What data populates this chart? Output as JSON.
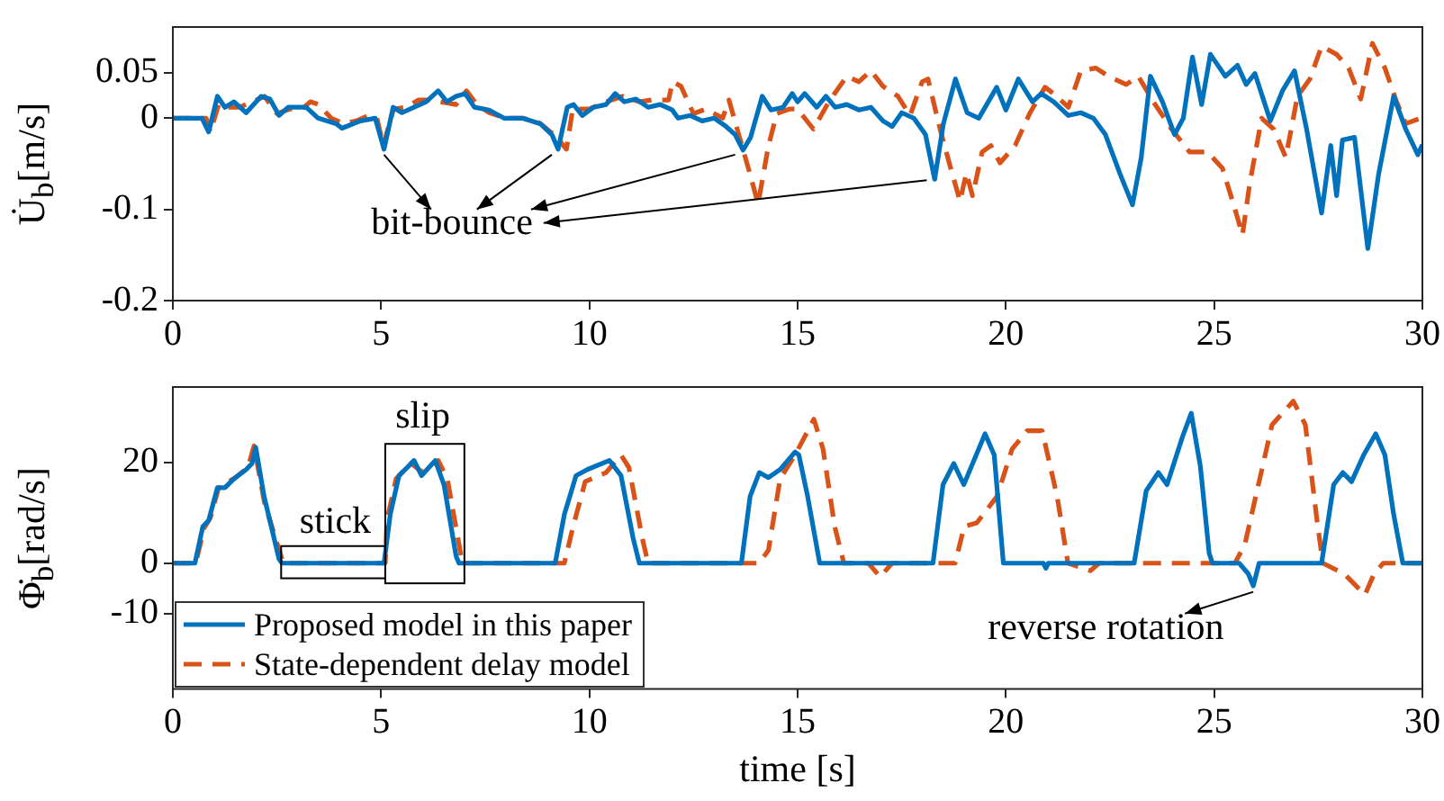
{
  "chart_data": [
    {
      "type": "line",
      "ylabel": "U̇$_{b}$[m/s]",
      "xlim": [
        0,
        30
      ],
      "xticks": [
        0,
        5,
        10,
        15,
        20,
        25,
        30
      ],
      "ylim": [
        -0.2,
        0.1
      ],
      "yticks": [
        -0.2,
        -0.1,
        0,
        0.05
      ],
      "grid": false,
      "legend": false,
      "annotations": [
        {
          "text": "bit-bounce",
          "x": 5.07,
          "y": -0.034
        }
      ],
      "series": [
        {
          "color": "#0072bd",
          "line_style": "solid",
          "x": [
            0,
            0.7,
            0.86,
            1.07,
            1.25,
            1.47,
            1.76,
            2.12,
            2.33,
            2.55,
            2.77,
            3.2,
            3.49,
            3.92,
            4.06,
            4.5,
            4.86,
            5.07,
            5.29,
            5.5,
            5.79,
            6.08,
            6.37,
            6.58,
            6.8,
            7.02,
            7.24,
            7.59,
            7.95,
            8.39,
            8.82,
            9.1,
            9.25,
            9.47,
            9.62,
            9.83,
            10.1,
            10.4,
            10.62,
            10.84,
            11.12,
            11.41,
            11.7,
            11.99,
            12.13,
            12.42,
            12.71,
            13.0,
            13.28,
            13.5,
            13.69,
            13.87,
            14.15,
            14.36,
            14.65,
            14.87,
            15.0,
            15.17,
            15.46,
            15.68,
            15.9,
            16.18,
            16.47,
            16.76,
            17.05,
            17.27,
            17.5,
            17.79,
            18.07,
            18.29,
            18.5,
            18.79,
            19.07,
            19.35,
            19.78,
            20.0,
            20.3,
            20.64,
            20.85,
            21.15,
            21.5,
            21.8,
            22.1,
            22.39,
            22.74,
            23.04,
            23.25,
            23.47,
            23.76,
            24.05,
            24.26,
            24.48,
            24.7,
            24.91,
            25.27,
            25.56,
            25.77,
            25.98,
            26.35,
            26.64,
            26.93,
            27.22,
            27.58,
            27.8,
            27.94,
            28.08,
            28.37,
            28.69,
            28.95,
            29.31,
            29.6,
            29.89,
            30
          ],
          "values": [
            0,
            0,
            -0.015,
            0.024,
            0.012,
            0.018,
            0.006,
            0.024,
            0.021,
            0.003,
            0.012,
            0.012,
            0,
            -0.006,
            -0.011,
            -0.003,
            0,
            -0.034,
            0.012,
            0.006,
            0.012,
            0.018,
            0.03,
            0.018,
            0.024,
            0.027,
            0.012,
            0.009,
            0,
            0,
            -0.006,
            -0.018,
            -0.034,
            0.012,
            0.015,
            0.003,
            0.012,
            0.015,
            0.027,
            0.018,
            0.021,
            0.012,
            0.015,
            0.009,
            0,
            0.003,
            -0.003,
            0,
            -0.009,
            -0.018,
            -0.035,
            -0.021,
            0.024,
            0.009,
            0.012,
            0.027,
            0.018,
            0.027,
            0.012,
            0.024,
            0.012,
            0.015,
            0.009,
            0.012,
            -0.003,
            -0.009,
            0.006,
            0,
            -0.018,
            -0.067,
            -0.006,
            0.043,
            0.006,
            0,
            0.034,
            0.009,
            0.043,
            0.018,
            0.027,
            0.018,
            0.003,
            0.006,
            0,
            -0.018,
            -0.061,
            -0.095,
            -0.043,
            0.046,
            0.018,
            -0.018,
            0,
            0.067,
            0.015,
            0.07,
            0.046,
            0.058,
            0.037,
            0.049,
            -0.003,
            0.03,
            0.052,
            -0.012,
            -0.104,
            -0.03,
            -0.085,
            -0.024,
            -0.021,
            -0.143,
            -0.061,
            0.024,
            -0.012,
            -0.04,
            -0.029
          ]
        },
        {
          "color": "#d95319",
          "line_style": "dashed",
          "x": [
            0,
            0.8,
            0.9,
            1.1,
            1.3,
            1.6,
            1.9,
            2.2,
            2.5,
            2.8,
            3.1,
            3.3,
            3.5,
            3.8,
            4.1,
            4.4,
            4.7,
            4.9,
            5.05,
            5.3,
            5.6,
            5.9,
            6.2,
            6.4,
            6.8,
            7.05,
            7.3,
            7.6,
            8.0,
            8.4,
            8.8,
            9.2,
            9.45,
            9.6,
            10.0,
            10.4,
            10.8,
            11.2,
            11.5,
            11.9,
            12.0,
            12.2,
            12.5,
            12.8,
            13.2,
            13.35,
            13.6,
            13.85,
            14.05,
            14.3,
            14.5,
            14.8,
            15.0,
            15.38,
            15.75,
            16.18,
            16.47,
            16.76,
            17.05,
            17.41,
            17.7,
            17.99,
            18.13,
            18.42,
            18.64,
            18.9,
            19.05,
            19.2,
            19.43,
            19.64,
            19.86,
            20.22,
            20.58,
            20.94,
            21.2,
            21.5,
            21.8,
            22.16,
            22.5,
            22.89,
            23.18,
            23.54,
            23.98,
            24.41,
            24.84,
            25.2,
            25.49,
            25.68,
            25.85,
            26.14,
            26.43,
            26.72,
            27.0,
            27.3,
            27.58,
            27.94,
            28.23,
            28.52,
            28.8,
            29.1,
            29.38,
            29.6,
            29.96
          ],
          "values": [
            0,
            0,
            -0.015,
            0.015,
            0.012,
            0.012,
            0.018,
            0.024,
            0.005,
            0.01,
            0.01,
            0.018,
            0.015,
            0,
            -0.006,
            -0.003,
            0.003,
            0,
            -0.03,
            0.01,
            0.012,
            0.02,
            0.02,
            0.018,
            0.015,
            0.03,
            0.015,
            0.006,
            0,
            0,
            -0.005,
            -0.02,
            -0.034,
            0.01,
            0.01,
            0.018,
            0.024,
            0.018,
            0.02,
            0.02,
            0.04,
            0.035,
            0.005,
            0.01,
            0,
            0.02,
            -0.02,
            -0.06,
            -0.094,
            -0.03,
            0.005,
            0.01,
            0.01,
            -0.012,
            0.018,
            0.046,
            0.04,
            0.052,
            0.035,
            0.024,
            0.003,
            0.04,
            0.043,
            -0.012,
            -0.049,
            -0.091,
            -0.06,
            -0.085,
            -0.037,
            -0.03,
            -0.049,
            -0.03,
            0.006,
            0.034,
            0.025,
            0.012,
            0.052,
            0.055,
            0.045,
            0.037,
            0.046,
            0.018,
            -0.012,
            -0.037,
            -0.037,
            -0.055,
            -0.098,
            -0.128,
            -0.073,
            0,
            -0.012,
            -0.043,
            0.024,
            0.043,
            0.079,
            0.07,
            0.055,
            0.021,
            0.082,
            0.055,
            0.018,
            -0.006,
            0
          ]
        }
      ]
    },
    {
      "type": "line",
      "xlabel": "time [s]",
      "ylabel": "Φ̇$_{b}$[rad/s]",
      "xlim": [
        0,
        30
      ],
      "xticks": [
        0,
        5,
        10,
        15,
        20,
        25,
        30
      ],
      "ylim": [
        -25,
        35
      ],
      "yticks": [
        -10,
        0,
        20
      ],
      "grid": false,
      "legend": "bottom left",
      "annotations": [
        "stick",
        "slip",
        {
          "text": "reverse rotation",
          "x": 25.94,
          "y": -4.5
        }
      ],
      "series": [
        {
          "name": "Proposed model in this paper",
          "color": "#0072bd",
          "line_style": "solid",
          "x": [
            0,
            0.53,
            0.72,
            0.86,
            1.07,
            1.25,
            1.47,
            1.76,
            1.9,
            1.99,
            2.19,
            2.55,
            2.62,
            5.07,
            5.22,
            5.43,
            5.65,
            5.79,
            5.97,
            6.3,
            6.51,
            6.8,
            6.87,
            9.18,
            9.4,
            9.68,
            9.95,
            10.48,
            10.76,
            11.05,
            11.2,
            13.65,
            13.86,
            14.08,
            14.3,
            14.58,
            14.94,
            15.03,
            15.24,
            15.53,
            18.25,
            18.49,
            18.75,
            18.99,
            19.5,
            19.72,
            19.94,
            20.9,
            20.96,
            21.02,
            23.08,
            23.37,
            23.66,
            23.87,
            24.24,
            24.45,
            24.67,
            24.88,
            24.96,
            25.6,
            25.82,
            25.94,
            26.08,
            27.58,
            27.87,
            28.09,
            28.3,
            28.59,
            28.88,
            29.1,
            29.31,
            29.53,
            30
          ],
          "values": [
            0,
            0,
            7.3,
            8.5,
            15,
            15,
            16.8,
            18.6,
            19.8,
            23,
            13.3,
            0.8,
            0,
            0,
            9.7,
            17.4,
            19.2,
            20.4,
            17.4,
            20.4,
            15.6,
            1.4,
            0,
            0,
            9.7,
            17.4,
            18.6,
            20.4,
            17.4,
            5,
            0,
            0,
            13.3,
            18,
            17,
            18.6,
            22.1,
            21.5,
            13.3,
            0,
            0,
            15.6,
            19.8,
            15.6,
            25.7,
            21.5,
            0,
            0,
            -1,
            0,
            0,
            14.4,
            18,
            15.6,
            25.1,
            29.8,
            19.2,
            2,
            0,
            0,
            -2.1,
            -4.5,
            0,
            0,
            15.6,
            18,
            16.2,
            21.5,
            25.7,
            21.5,
            9.7,
            0,
            0
          ]
        },
        {
          "name": "State-dependent delay model",
          "color": "#d95319",
          "line_style": "dashed",
          "x": [
            0,
            0.55,
            0.75,
            0.9,
            1.1,
            1.5,
            1.8,
            1.95,
            2.2,
            2.65,
            5.1,
            5.14,
            5.36,
            5.72,
            6.01,
            6.37,
            6.59,
            6.95,
            9.4,
            9.61,
            9.9,
            10.4,
            10.76,
            10.95,
            11.27,
            11.41,
            14.08,
            14.3,
            14.58,
            14.94,
            15.39,
            15.61,
            15.89,
            16.11,
            16.7,
            16.98,
            17.27,
            18.78,
            19.0,
            19.3,
            19.79,
            20.15,
            20.51,
            20.87,
            21.23,
            21.49,
            22.03,
            22.24,
            25.5,
            25.74,
            26.03,
            26.39,
            26.9,
            27.19,
            27.47,
            27.61,
            28.12,
            28.62,
            28.84,
            29.06,
            30
          ],
          "values": [
            0,
            0,
            7,
            9,
            15,
            17,
            19,
            23.3,
            12,
            0,
            0,
            8.5,
            16.8,
            19.8,
            18,
            20.4,
            16.8,
            0,
            0,
            7.3,
            16.2,
            18,
            21.5,
            19,
            5,
            0,
            0,
            2.6,
            16.8,
            21.5,
            28.6,
            22.7,
            7.3,
            0,
            0,
            -2.7,
            0,
            0,
            7.3,
            8,
            13.3,
            22.7,
            26.3,
            26.3,
            13.3,
            0,
            -1.5,
            0,
            0,
            3.8,
            14.4,
            27.5,
            32.2,
            27.5,
            8.5,
            0,
            -2.1,
            -6.3,
            -2.1,
            0,
            0
          ]
        }
      ]
    }
  ]
}
